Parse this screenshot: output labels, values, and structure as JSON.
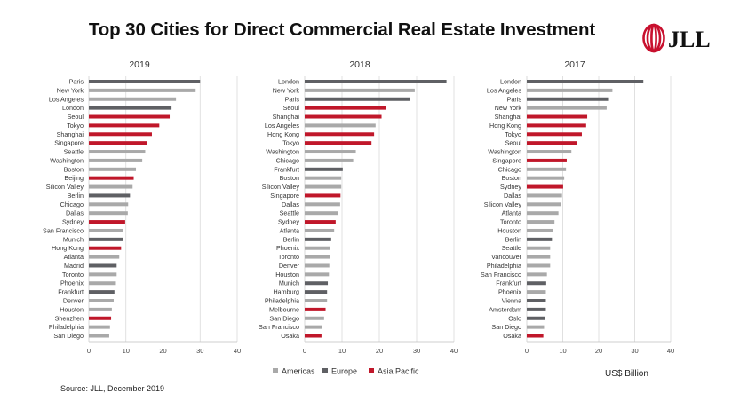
{
  "header": {
    "title": "Top 30 Cities for Direct Commercial Real Estate Investment",
    "logo_text": "JLL"
  },
  "footer": {
    "source": "Source: JLL, December 2019",
    "unit": "US$ Billion"
  },
  "colors": {
    "Americas": "#a9a9a9",
    "Europe": "#5f6064",
    "Asia Pacific": "#c0172a",
    "grid": "#d9d9d9",
    "brand_red": "#c8102e"
  },
  "legend": [
    "Americas",
    "Europe",
    "Asia Pacific"
  ],
  "chart_data": [
    {
      "type": "bar",
      "orientation": "horizontal",
      "title": "2019",
      "xlabel": "US$ Billion",
      "xlim": [
        0,
        40
      ],
      "xticks": [
        "0",
        "10",
        "20",
        "30",
        "40"
      ],
      "grid": true,
      "categories": [
        "Paris",
        "New York",
        "Los Angeles",
        "London",
        "Seoul",
        "Tokyo",
        "Shanghai",
        "Singapore",
        "Seattle",
        "Washington",
        "Boston",
        "Beijing",
        "Silicon Valley",
        "Berlin",
        "Chicago",
        "Dallas",
        "Sydney",
        "San Francisco",
        "Munich",
        "Hong Kong",
        "Atlanta",
        "Madrid",
        "Toronto",
        "Phoenix",
        "Frankfurt",
        "Denver",
        "Houston",
        "Shenzhen",
        "Philadelphia",
        "San Diego"
      ],
      "values": [
        30.0,
        28.8,
        23.5,
        22.3,
        21.8,
        19.0,
        17.0,
        15.6,
        15.2,
        14.4,
        12.7,
        12.1,
        11.8,
        11.1,
        10.6,
        10.5,
        9.8,
        9.1,
        9.1,
        8.7,
        8.2,
        7.5,
        7.5,
        7.3,
        6.9,
        6.7,
        6.2,
        6.0,
        5.7,
        5.5
      ],
      "regions": [
        "Europe",
        "Americas",
        "Americas",
        "Europe",
        "Asia Pacific",
        "Asia Pacific",
        "Asia Pacific",
        "Asia Pacific",
        "Americas",
        "Americas",
        "Americas",
        "Asia Pacific",
        "Americas",
        "Europe",
        "Americas",
        "Americas",
        "Asia Pacific",
        "Americas",
        "Europe",
        "Asia Pacific",
        "Americas",
        "Europe",
        "Americas",
        "Americas",
        "Europe",
        "Americas",
        "Americas",
        "Asia Pacific",
        "Americas",
        "Americas"
      ]
    },
    {
      "type": "bar",
      "orientation": "horizontal",
      "title": "2018",
      "xlabel": "US$ Billion",
      "xlim": [
        0,
        40
      ],
      "xticks": [
        "0",
        "10",
        "20",
        "30",
        "40"
      ],
      "grid": true,
      "legend_position": "bottom",
      "categories": [
        "London",
        "New York",
        "Paris",
        "Seoul",
        "Shanghai",
        "Los Angeles",
        "Hong Kong",
        "Tokyo",
        "Washington",
        "Chicago",
        "Frankfurt",
        "Boston",
        "Silicon Valley",
        "Singapore",
        "Dallas",
        "Seattle",
        "Sydney",
        "Atlanta",
        "Berlin",
        "Phoenix",
        "Toronto",
        "Denver",
        "Houston",
        "Munich",
        "Hamburg",
        "Philadelphia",
        "Melbourne",
        "San Diego",
        "San Francisco",
        "Osaka"
      ],
      "values": [
        38.0,
        29.5,
        28.2,
        21.8,
        20.6,
        19.0,
        18.6,
        17.9,
        13.7,
        13.0,
        10.2,
        9.8,
        9.8,
        9.6,
        9.5,
        9.0,
        8.3,
        7.9,
        7.1,
        6.9,
        6.8,
        6.6,
        6.5,
        6.2,
        6.0,
        6.0,
        5.6,
        5.2,
        4.7,
        4.5
      ],
      "regions": [
        "Europe",
        "Americas",
        "Europe",
        "Asia Pacific",
        "Asia Pacific",
        "Americas",
        "Asia Pacific",
        "Asia Pacific",
        "Americas",
        "Americas",
        "Europe",
        "Americas",
        "Americas",
        "Asia Pacific",
        "Americas",
        "Americas",
        "Asia Pacific",
        "Americas",
        "Europe",
        "Americas",
        "Americas",
        "Americas",
        "Americas",
        "Europe",
        "Europe",
        "Americas",
        "Asia Pacific",
        "Americas",
        "Americas",
        "Asia Pacific"
      ]
    },
    {
      "type": "bar",
      "orientation": "horizontal",
      "title": "2017",
      "xlabel": "US$ Billion",
      "xlim": [
        0,
        40
      ],
      "xticks": [
        "0",
        "10",
        "20",
        "30",
        "40"
      ],
      "grid": true,
      "categories": [
        "London",
        "Los Angeles",
        "Paris",
        "New York",
        "Shanghai",
        "Hong Kong",
        "Tokyo",
        "Seoul",
        "Washington",
        "Singapore",
        "Chicago",
        "Boston",
        "Sydney",
        "Dallas",
        "Silicon Valley",
        "Atlanta",
        "Toronto",
        "Houston",
        "Berlin",
        "Seattle",
        "Vancouver",
        "Philadelphia",
        "San Francisco",
        "Frankfurt",
        "Phoenix",
        "Vienna",
        "Amsterdam",
        "Oslo",
        "San Diego",
        "Osaka"
      ],
      "values": [
        32.4,
        23.8,
        22.6,
        22.2,
        16.8,
        16.5,
        15.3,
        14.0,
        12.4,
        11.1,
        10.9,
        10.4,
        10.1,
        9.8,
        9.4,
        8.8,
        7.7,
        7.2,
        7.0,
        6.5,
        6.5,
        6.5,
        5.6,
        5.4,
        5.3,
        5.3,
        5.3,
        5.0,
        4.8,
        4.6
      ],
      "regions": [
        "Europe",
        "Americas",
        "Europe",
        "Americas",
        "Asia Pacific",
        "Asia Pacific",
        "Asia Pacific",
        "Asia Pacific",
        "Americas",
        "Asia Pacific",
        "Americas",
        "Americas",
        "Asia Pacific",
        "Americas",
        "Americas",
        "Americas",
        "Americas",
        "Americas",
        "Europe",
        "Americas",
        "Americas",
        "Americas",
        "Americas",
        "Europe",
        "Americas",
        "Europe",
        "Europe",
        "Europe",
        "Americas",
        "Asia Pacific"
      ]
    }
  ]
}
